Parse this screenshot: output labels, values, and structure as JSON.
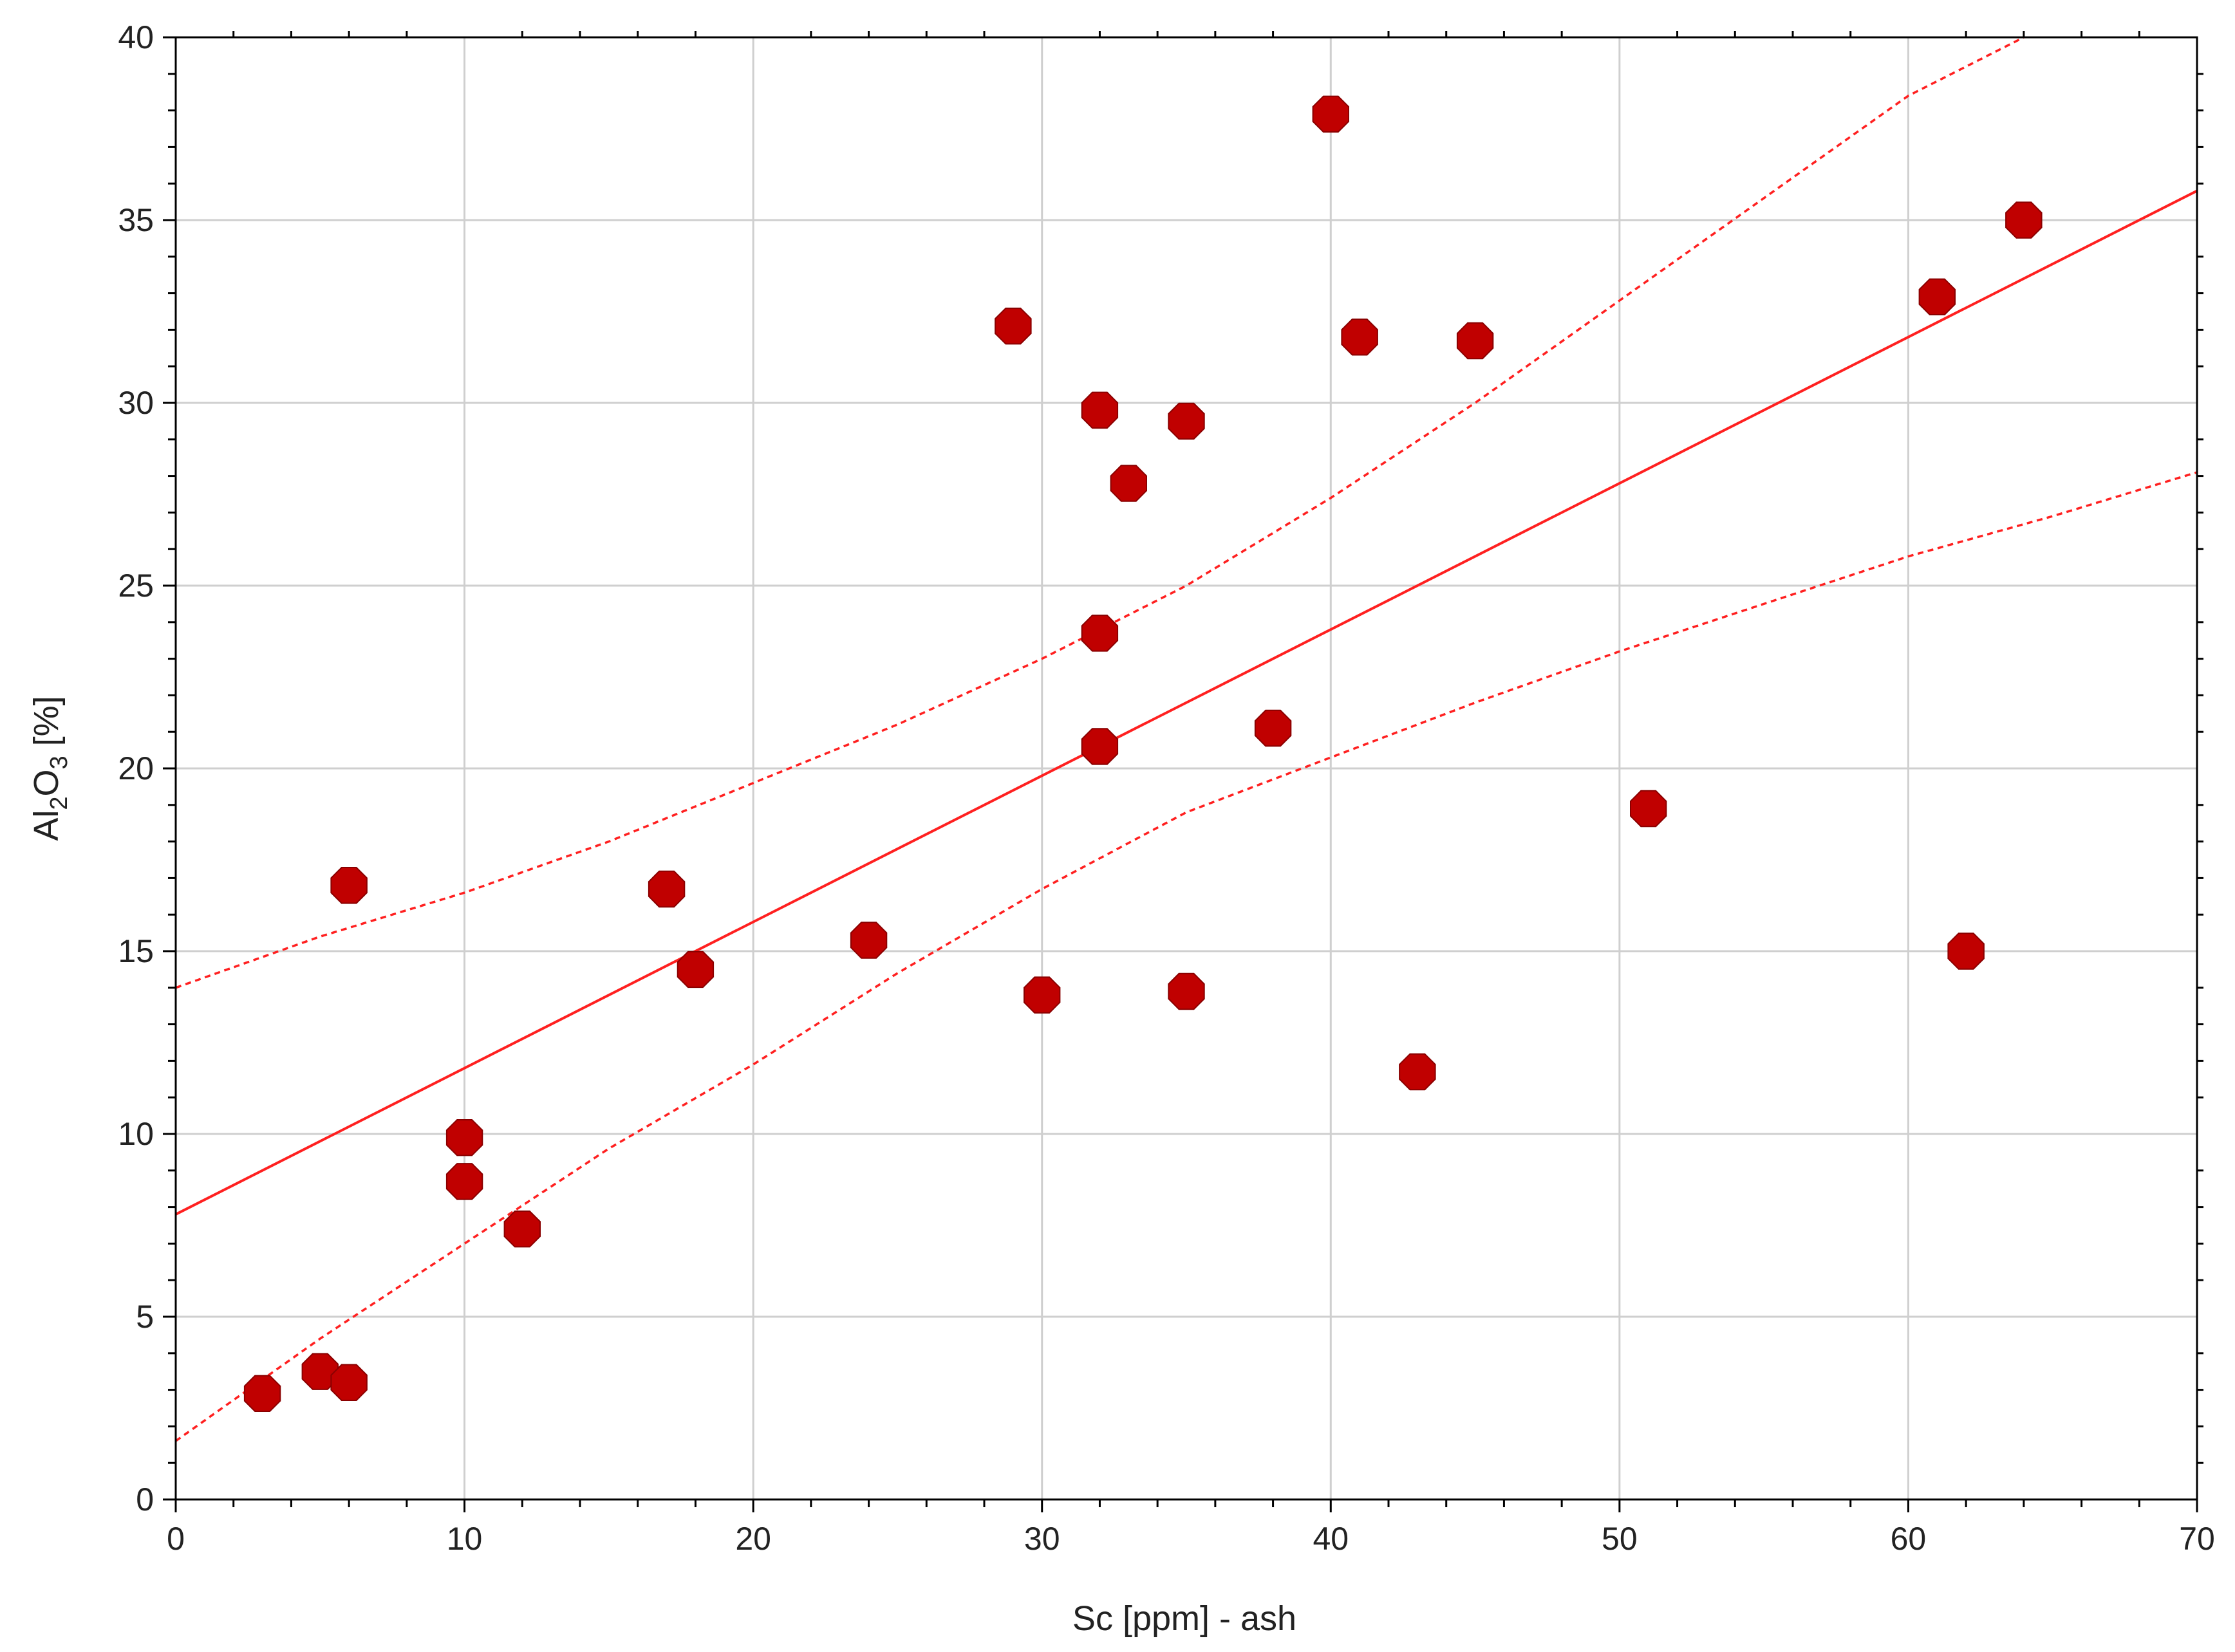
{
  "chart_data": {
    "type": "scatter",
    "title": "",
    "xlabel": "Sc [ppm] - ash",
    "ylabel": {
      "prefix": "Al",
      "sub1": "2",
      "mid": "O",
      "sub2": "3",
      "suffix": " [%]"
    },
    "xlim": [
      0,
      70
    ],
    "ylim": [
      0,
      40
    ],
    "x_ticks": [
      0,
      10,
      20,
      30,
      40,
      50,
      60,
      70
    ],
    "y_ticks": [
      0,
      5,
      10,
      15,
      20,
      25,
      30,
      35,
      40
    ],
    "grid": true,
    "legend": "none",
    "colors": {
      "points": "#c00000",
      "fit": "#ff2020",
      "grid": "#cfcfcf",
      "frame": "#000000"
    },
    "points": [
      {
        "x": 3,
        "y": 2.9
      },
      {
        "x": 5,
        "y": 3.5
      },
      {
        "x": 6,
        "y": 3.2
      },
      {
        "x": 6,
        "y": 16.8
      },
      {
        "x": 10,
        "y": 9.9
      },
      {
        "x": 10,
        "y": 8.7
      },
      {
        "x": 12,
        "y": 7.4
      },
      {
        "x": 17,
        "y": 16.7
      },
      {
        "x": 18,
        "y": 14.5
      },
      {
        "x": 24,
        "y": 15.3
      },
      {
        "x": 29,
        "y": 32.1
      },
      {
        "x": 30,
        "y": 13.8
      },
      {
        "x": 32,
        "y": 29.8
      },
      {
        "x": 32,
        "y": 23.7
      },
      {
        "x": 32,
        "y": 20.6
      },
      {
        "x": 33,
        "y": 27.8
      },
      {
        "x": 35,
        "y": 29.5
      },
      {
        "x": 35,
        "y": 13.9
      },
      {
        "x": 38,
        "y": 21.1
      },
      {
        "x": 40,
        "y": 37.9
      },
      {
        "x": 41,
        "y": 31.8
      },
      {
        "x": 43,
        "y": 11.7
      },
      {
        "x": 45,
        "y": 31.7
      },
      {
        "x": 51,
        "y": 18.9
      },
      {
        "x": 61,
        "y": 32.9
      },
      {
        "x": 62,
        "y": 15.0
      },
      {
        "x": 64,
        "y": 35.0
      }
    ],
    "fit_line": {
      "x": [
        0,
        70
      ],
      "y": [
        7.8,
        35.8
      ]
    },
    "confidence_band": {
      "upper": {
        "x": [
          0,
          5,
          10,
          15,
          20,
          25,
          30,
          35,
          40,
          45,
          50,
          55,
          60,
          64
        ],
        "y": [
          14.0,
          15.4,
          16.6,
          18.0,
          19.6,
          21.2,
          23.0,
          25.0,
          27.4,
          30.0,
          32.8,
          35.6,
          38.4,
          40.0
        ]
      },
      "lower": {
        "x": [
          0,
          5,
          10,
          15,
          20,
          25,
          30,
          35,
          40,
          45,
          50,
          55,
          60,
          65,
          70
        ],
        "y": [
          1.6,
          4.4,
          7.0,
          9.6,
          11.9,
          14.4,
          16.7,
          18.8,
          20.3,
          21.8,
          23.2,
          24.5,
          25.8,
          26.9,
          28.1
        ]
      }
    }
  }
}
